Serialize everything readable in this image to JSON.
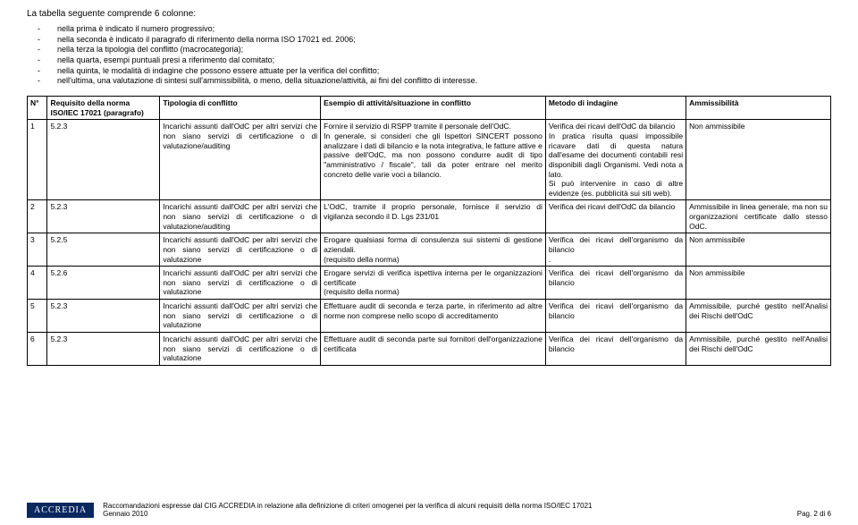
{
  "intro": "La tabella seguente comprende 6 colonne:",
  "bullets": [
    "nella prima è indicato il numero progressivo;",
    "nella seconda è indicato il paragrafo di riferimento della norma ISO 17021 ed. 2006;",
    "nella terza la tipologia del conflitto (macrocategoria);",
    "nella quarta, esempi puntuali presi a riferimento dal comitato;",
    "nella quinta, le modalità di indagine che possono essere attuate per la verifica del conflitto;",
    "nell'ultima, una valutazione di sintesi sull'ammissibilità, o meno, della situazione/attività, ai fini del conflitto di interesse."
  ],
  "headers": {
    "n": "N°",
    "req": "Requisito della norma ISO/IEC 17021 (paragrafo)",
    "tip": "Tipologia di conflitto",
    "ese": "Esempio di attività/situazione in conflitto",
    "met": "Metodo di indagine",
    "amm": "Ammissibilità"
  },
  "rows": [
    {
      "n": "1",
      "req": "5.2.3",
      "tip": "Incarichi assunti dall'OdC per altri servizi che non siano servizi di certificazione o di valutazione/auditing",
      "ese": "Fornire il servizio di RSPP tramite il personale dell'OdC.\nIn generale, si consideri che gli Ispettori SINCERT possono analizzare i dati di bilancio e la nota integrativa, le fatture attive e passive dell'OdC, ma non possono condurre audit di tipo \"amministrativo / fiscale\", tali da poter entrare nel merito concreto delle varie voci a bilancio.",
      "met": "Verifica dei ricavi dell'OdC da bilancio\nIn pratica risulta quasi impossibile ricavare dati di questa natura dall'esame dei documenti contabili resi disponibili dagli Organismi. Vedi nota a lato.\nSi può intervenire in caso di altre evidenze (es. pubblicità sui siti web).",
      "amm": "Non ammissibile"
    },
    {
      "n": "2",
      "req": "5.2.3",
      "tip": "Incarichi assunti dall'OdC per altri servizi che non siano servizi di certificazione o di valutazione/auditing",
      "ese": "L'OdC, tramite il proprio personale, fornisce il servizio di vigilanza secondo il D. Lgs 231/01",
      "met": "Verifica dei ricavi dell'OdC da bilancio",
      "amm": "Ammissibile in linea generale, ma non su organizzazioni certificate dallo stesso OdC."
    },
    {
      "n": "3",
      "req": "5.2.5",
      "tip": "Incarichi assunti dall'OdC per altri servizi che non siano servizi di certificazione o di valutazione",
      "ese": "Erogare qualsiasi forma di consulenza sui sistemi di gestione aziendali.\n(requisito della norma)",
      "met": "Verifica dei ricavi dell'organismo da bilancio\n.",
      "amm": "Non ammissibile"
    },
    {
      "n": "4",
      "req": "5.2.6",
      "tip": "Incarichi assunti dall'OdC per altri servizi che non siano servizi di certificazione o di valutazione",
      "ese": "Erogare servizi di verifica ispettiva interna per le organizzazioni certificate\n(requisito della norma)",
      "met": "Verifica dei ricavi dell'organismo da bilancio",
      "amm": "Non ammissibile"
    },
    {
      "n": "5",
      "req": "5.2.3",
      "tip": "Incarichi assunti dall'OdC per altri servizi che non siano servizi di certificazione o di valutazione",
      "ese": "Effettuare audit di seconda e terza parte, in riferimento ad altre norme non comprese nello scopo di accreditamento",
      "met": "Verifica dei ricavi dell'organismo da bilancio",
      "amm": "Ammissibile, purché gestito nell'Analisi dei Rischi dell'OdC"
    },
    {
      "n": "6",
      "req": "5.2.3",
      "tip": "Incarichi assunti dall'OdC per altri servizi che non siano servizi di certificazione o di valutazione",
      "ese": "Effettuare audit di seconda parte sui fornitori dell'organizzazione certificata",
      "met": "Verifica dei ricavi dell'organismo da bilancio",
      "amm": "Ammissibile, purché gestito nell'Analisi dei Rischi dell'OdC"
    }
  ],
  "footer": {
    "logo": "ACCREDIA",
    "text": "Raccomandazioni espresse dal CIG ACCREDIA in relazione alla definizione di criteri omogenei per la verifica di alcuni requisiti della norma ISO/IEC 17021",
    "date": "Gennaio 2010",
    "page": "Pag. 2 di 6"
  }
}
